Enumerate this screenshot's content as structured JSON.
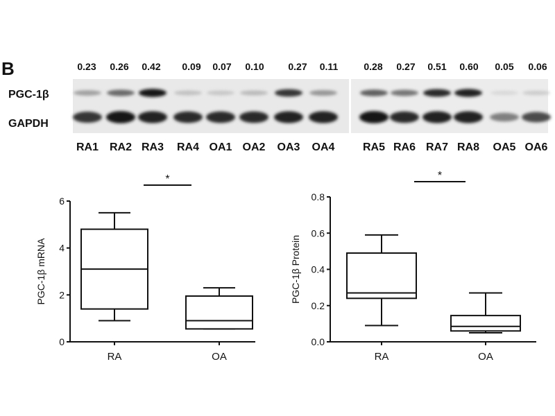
{
  "panel": "B",
  "blot": {
    "ratios": [
      "0.23",
      "0.26",
      "0.42",
      "0.09",
      "0.07",
      "0.10",
      "0.27",
      "0.11",
      "0.28",
      "0.27",
      "0.51",
      "0.60",
      "0.05",
      "0.06"
    ],
    "row_labels": [
      "PGC-1β",
      "GAPDH"
    ],
    "lanes": [
      "RA1",
      "RA2",
      "RA3",
      "RA4",
      "OA1",
      "OA2",
      "OA3",
      "OA4",
      "RA5",
      "RA6",
      "RA7",
      "RA8",
      "OA5",
      "OA6"
    ],
    "pgc_intensity": [
      0.3,
      0.55,
      0.95,
      0.15,
      0.12,
      0.18,
      0.8,
      0.35,
      0.6,
      0.5,
      0.85,
      0.9,
      0.04,
      0.1
    ],
    "gapdh_intensity": [
      0.8,
      0.95,
      0.9,
      0.85,
      0.85,
      0.85,
      0.9,
      0.9,
      0.95,
      0.85,
      0.9,
      0.9,
      0.45,
      0.7
    ]
  },
  "chart_data": [
    {
      "type": "box",
      "ylabel": "PGC-1β mRNA",
      "categories": [
        "RA",
        "OA"
      ],
      "ylim": [
        0,
        6
      ],
      "yticks": [
        "0",
        "2",
        "4",
        "6"
      ],
      "boxes": [
        {
          "min": 0.9,
          "q1": 1.4,
          "median": 3.1,
          "q3": 4.8,
          "max": 5.5
        },
        {
          "min": 0.55,
          "q1": 0.55,
          "median": 0.9,
          "q3": 1.95,
          "max": 2.3
        }
      ],
      "significance": "*"
    },
    {
      "type": "box",
      "ylabel": "PGC-1β Protein",
      "categories": [
        "RA",
        "OA"
      ],
      "ylim": [
        0,
        0.8
      ],
      "yticks": [
        "0.0",
        "0.2",
        "0.4",
        "0.6",
        "0.8"
      ],
      "boxes": [
        {
          "min": 0.09,
          "q1": 0.24,
          "median": 0.27,
          "q3": 0.49,
          "max": 0.59
        },
        {
          "min": 0.05,
          "q1": 0.06,
          "median": 0.085,
          "q3": 0.145,
          "max": 0.27
        }
      ],
      "significance": "*"
    }
  ]
}
